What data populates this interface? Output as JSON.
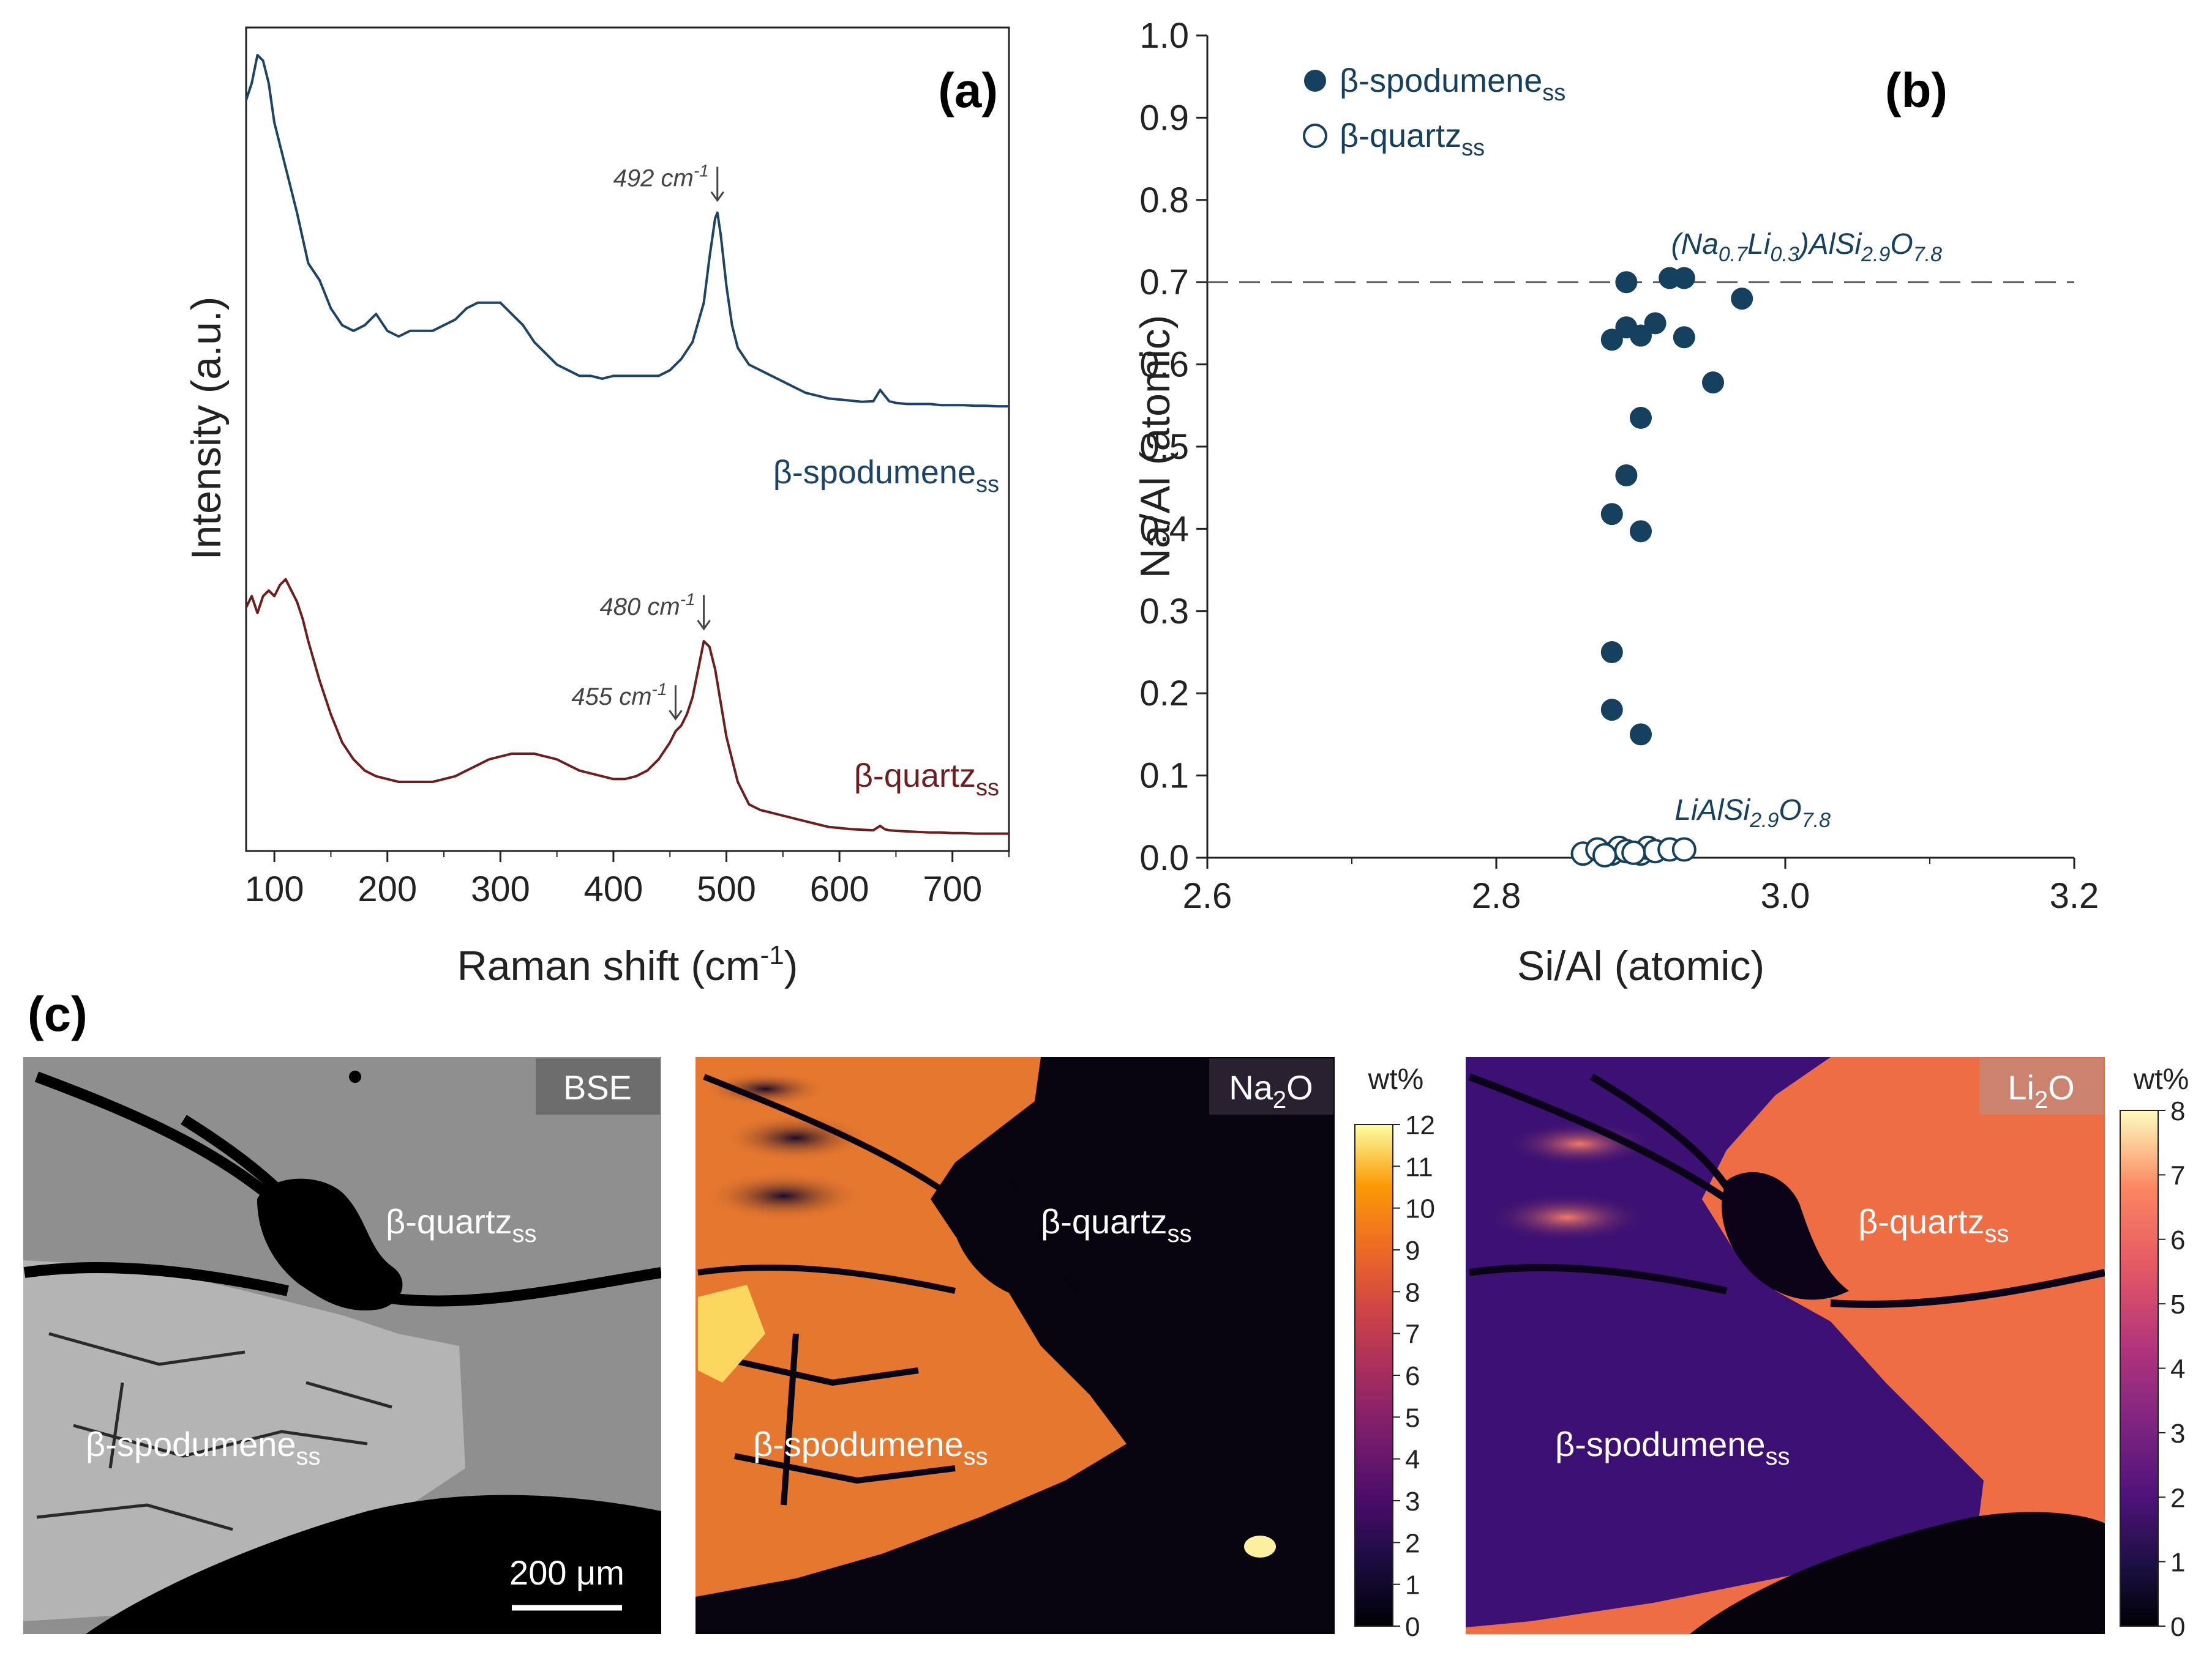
{
  "chart_data": [
    {
      "panel": "(a)",
      "type": "line",
      "xlabel": "Raman shift (cm",
      "xlabel_sup": "-1",
      "xlabel_end": ")",
      "ylabel": "Intensity (a.u.)",
      "xlim": [
        75,
        750
      ],
      "xticks": [
        100,
        200,
        300,
        400,
        500,
        600,
        700
      ],
      "yticks": [],
      "series": [
        {
          "name": "β-spodumene",
          "name_sub": "ss",
          "color": "#1d4466",
          "x": [
            75,
            80,
            85,
            90,
            95,
            100,
            110,
            120,
            130,
            140,
            150,
            160,
            170,
            180,
            190,
            200,
            210,
            220,
            230,
            240,
            250,
            260,
            270,
            280,
            290,
            300,
            310,
            320,
            330,
            340,
            350,
            360,
            370,
            380,
            390,
            400,
            410,
            420,
            430,
            440,
            450,
            460,
            470,
            480,
            485,
            490,
            492,
            495,
            500,
            505,
            510,
            520,
            530,
            540,
            550,
            560,
            570,
            580,
            590,
            600,
            610,
            620,
            630,
            636,
            640,
            644,
            650,
            660,
            670,
            680,
            690,
            700,
            710,
            720,
            730,
            740,
            750
          ],
          "y": [
            92,
            95,
            100,
            99,
            95,
            88,
            80,
            72,
            63,
            60,
            55,
            52,
            51,
            52,
            54,
            51,
            50,
            51,
            51,
            51,
            52,
            53,
            55,
            56,
            56,
            56,
            54,
            52,
            49,
            47,
            45,
            44,
            43,
            43,
            42.5,
            43,
            43,
            43,
            43,
            43,
            44,
            46,
            49,
            56,
            64,
            71,
            72,
            68,
            59,
            52,
            48,
            45,
            44,
            43,
            42,
            41,
            40,
            39.5,
            39,
            38.8,
            38.6,
            38.4,
            38.5,
            40.5,
            39.5,
            38.5,
            38.2,
            38,
            38,
            38,
            37.8,
            37.8,
            37.8,
            37.7,
            37.7,
            37.6,
            37.6
          ]
        },
        {
          "name": "β-quartz",
          "name_sub": "ss",
          "color": "#6e1e1e",
          "x": [
            75,
            80,
            85,
            90,
            95,
            100,
            105,
            110,
            115,
            120,
            125,
            130,
            140,
            150,
            160,
            170,
            180,
            190,
            200,
            210,
            220,
            230,
            240,
            250,
            260,
            270,
            280,
            290,
            300,
            310,
            320,
            330,
            340,
            350,
            360,
            370,
            380,
            390,
            400,
            410,
            420,
            430,
            440,
            450,
            455,
            460,
            465,
            470,
            475,
            480,
            485,
            490,
            495,
            500,
            510,
            520,
            530,
            540,
            550,
            560,
            570,
            580,
            590,
            600,
            610,
            620,
            630,
            636,
            640,
            644,
            650,
            660,
            670,
            680,
            690,
            700,
            710,
            720,
            730,
            740,
            750
          ],
          "y": [
            41,
            43,
            40,
            43,
            44,
            43,
            45,
            46,
            44,
            42,
            39,
            35,
            28,
            22,
            17,
            14,
            12,
            11,
            10.5,
            10,
            10,
            10,
            10,
            10.5,
            11,
            12,
            13,
            14,
            14.5,
            15,
            15,
            15,
            14.5,
            14,
            13,
            12,
            11.5,
            11,
            10.5,
            10.5,
            11,
            12,
            14,
            17,
            19,
            20,
            22,
            25,
            30,
            35,
            34,
            30,
            24,
            18,
            10,
            6,
            5,
            4.5,
            4,
            3.5,
            3,
            2.5,
            2,
            1.8,
            1.6,
            1.5,
            1.4,
            2.2,
            1.6,
            1.4,
            1.3,
            1.2,
            1.1,
            1.0,
            1.0,
            0.9,
            0.9,
            0.8,
            0.8,
            0.8,
            0.8
          ]
        }
      ],
      "annotations": [
        {
          "text": "492 cm",
          "sup": "-1",
          "x": 492,
          "series": 0
        },
        {
          "text": "480 cm",
          "sup": "-1",
          "x": 480,
          "series": 1
        },
        {
          "text": "455 cm",
          "sup": "-1",
          "x": 455,
          "series": 1
        }
      ]
    },
    {
      "panel": "(b)",
      "type": "scatter",
      "xlabel": "Si/Al (atomic)",
      "ylabel": "Na/Al (atomic)",
      "xlim": [
        2.6,
        3.2
      ],
      "ylim": [
        0,
        1.0
      ],
      "xticks": [
        "2.6",
        "2.8",
        "3.0",
        "3.2"
      ],
      "yticks": [
        "0.0",
        "0.1",
        "0.2",
        "0.3",
        "0.4",
        "0.5",
        "0.6",
        "0.7",
        "0.8",
        "0.9",
        "1.0"
      ],
      "reference_line": {
        "y": 0.7,
        "style": "dashed"
      },
      "formula_top": {
        "parts": [
          "(Na",
          "0.7",
          "Li",
          "0.3",
          ")AlSi",
          "2.9",
          "O",
          "7.8"
        ]
      },
      "formula_bottom": {
        "parts": [
          "LiAlSi",
          "2.9",
          "O",
          "7.8"
        ]
      },
      "series": [
        {
          "name": "β-spodumene",
          "name_sub": "ss",
          "marker": "filled",
          "color": "#15405e",
          "x": [
            2.89,
            2.92,
            2.93,
            2.97,
            2.89,
            2.91,
            2.88,
            2.9,
            2.93,
            2.95,
            2.9,
            2.89,
            2.88,
            2.9,
            2.88,
            2.88,
            2.9
          ],
          "y": [
            0.7,
            0.705,
            0.705,
            0.68,
            0.645,
            0.65,
            0.63,
            0.635,
            0.633,
            0.578,
            0.535,
            0.465,
            0.418,
            0.397,
            0.25,
            0.18,
            0.15
          ]
        },
        {
          "name": "β-quartz",
          "name_sub": "ss",
          "marker": "open",
          "color": "#15405e",
          "x": [
            2.86,
            2.87,
            2.88,
            2.885,
            2.89,
            2.9,
            2.905,
            2.91,
            2.92,
            2.93,
            2.875,
            2.895
          ],
          "y": [
            0.005,
            0.01,
            0.005,
            0.012,
            0.008,
            0.005,
            0.012,
            0.008,
            0.01,
            0.01,
            0.003,
            0.006
          ]
        }
      ]
    },
    {
      "panel": "(c)",
      "type": "heatmap",
      "maps": [
        {
          "label": "BSE",
          "sub": "",
          "colormap": "gray",
          "scalebar": "200 μm"
        },
        {
          "label": "Na",
          "sub": "2",
          "label_end": "O",
          "unit": "wt%",
          "colormap": "inferno",
          "colorbar_ticks": [
            0,
            1,
            2,
            3,
            4,
            5,
            6,
            7,
            8,
            9,
            10,
            11,
            12
          ]
        },
        {
          "label": "Li",
          "sub": "2",
          "label_end": "O",
          "unit": "wt%",
          "colormap": "plasma",
          "colorbar_ticks": [
            0,
            1,
            2,
            3,
            4,
            5,
            6,
            7,
            8
          ]
        }
      ],
      "phase_labels": [
        {
          "text": "β-quartz",
          "sub": "ss"
        },
        {
          "text": "β-spodumene",
          "sub": "ss"
        }
      ]
    }
  ]
}
